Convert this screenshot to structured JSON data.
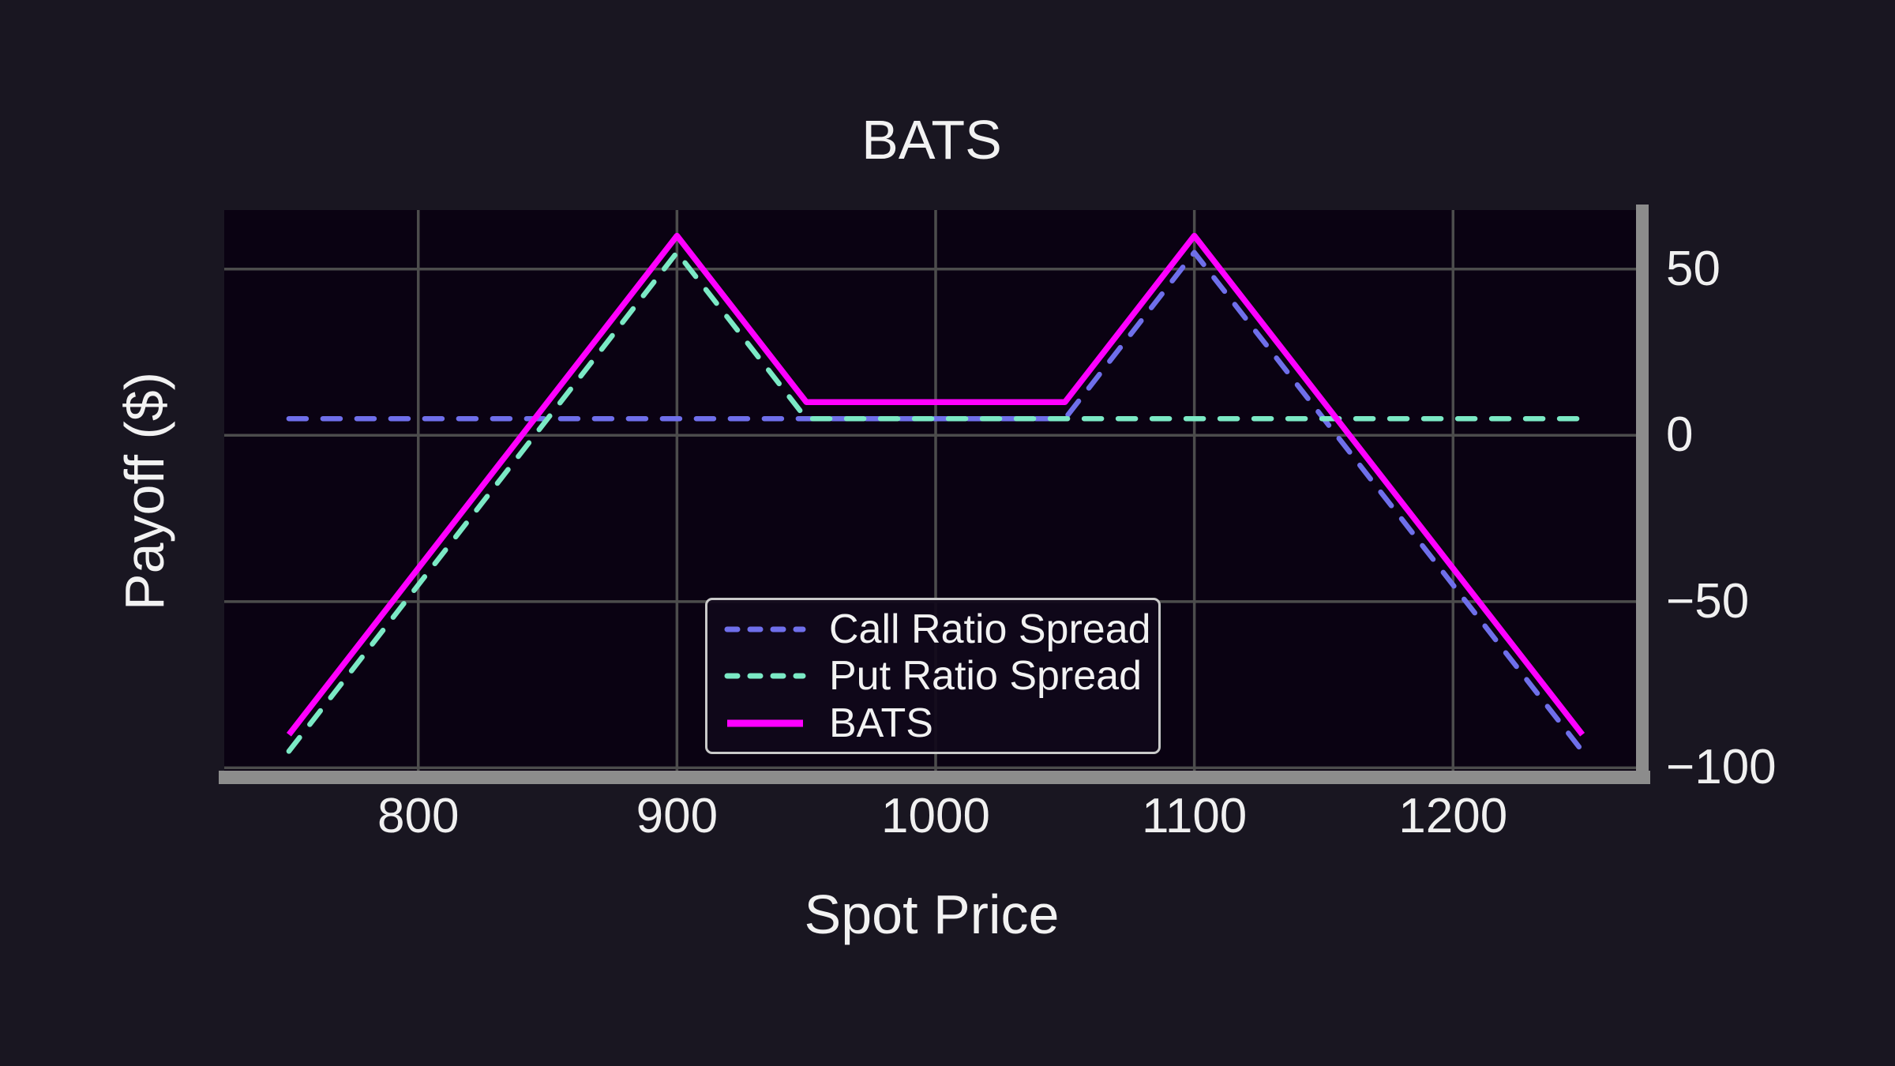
{
  "chart_data": {
    "type": "line",
    "title": "BATS",
    "xlabel": "Spot Price",
    "ylabel": "Payoff ($)",
    "xlim": [
      725,
      1275
    ],
    "ylim": [
      -102.75,
      67.75
    ],
    "xticks": [
      800,
      900,
      1000,
      1100,
      1200
    ],
    "xtick_labels": [
      "800",
      "900",
      "1000",
      "1100",
      "1200"
    ],
    "yticks": [
      50,
      0,
      -50,
      -100
    ],
    "ytick_labels": [
      "50",
      "0",
      "−50",
      "−100"
    ],
    "grid": true,
    "legend_position": "lower center, inside plot",
    "series": [
      {
        "name": "Call Ratio Spread",
        "color": "#6F6FEA",
        "style": "dashed",
        "x": [
          750,
          1050,
          1100,
          1250
        ],
        "y": [
          5,
          5,
          55,
          -95
        ]
      },
      {
        "name": "Put Ratio Spread",
        "color": "#7BE9C5",
        "style": "dashed",
        "x": [
          750,
          900,
          950,
          1250
        ],
        "y": [
          -95,
          55,
          5,
          5
        ]
      },
      {
        "name": "BATS",
        "color": "#FF00FF",
        "style": "solid",
        "x": [
          750,
          900,
          950,
          1050,
          1100,
          1250
        ],
        "y": [
          -90,
          60,
          10,
          10,
          60,
          -90
        ]
      }
    ],
    "theme": {
      "figure_background": "#191621",
      "axes_background": "#0A0212",
      "grid_color": "#4C4C4C",
      "spine_color": "#8C8C8C",
      "text_color": "#F2F2F2",
      "legend_border": "#C9C9C9"
    }
  }
}
